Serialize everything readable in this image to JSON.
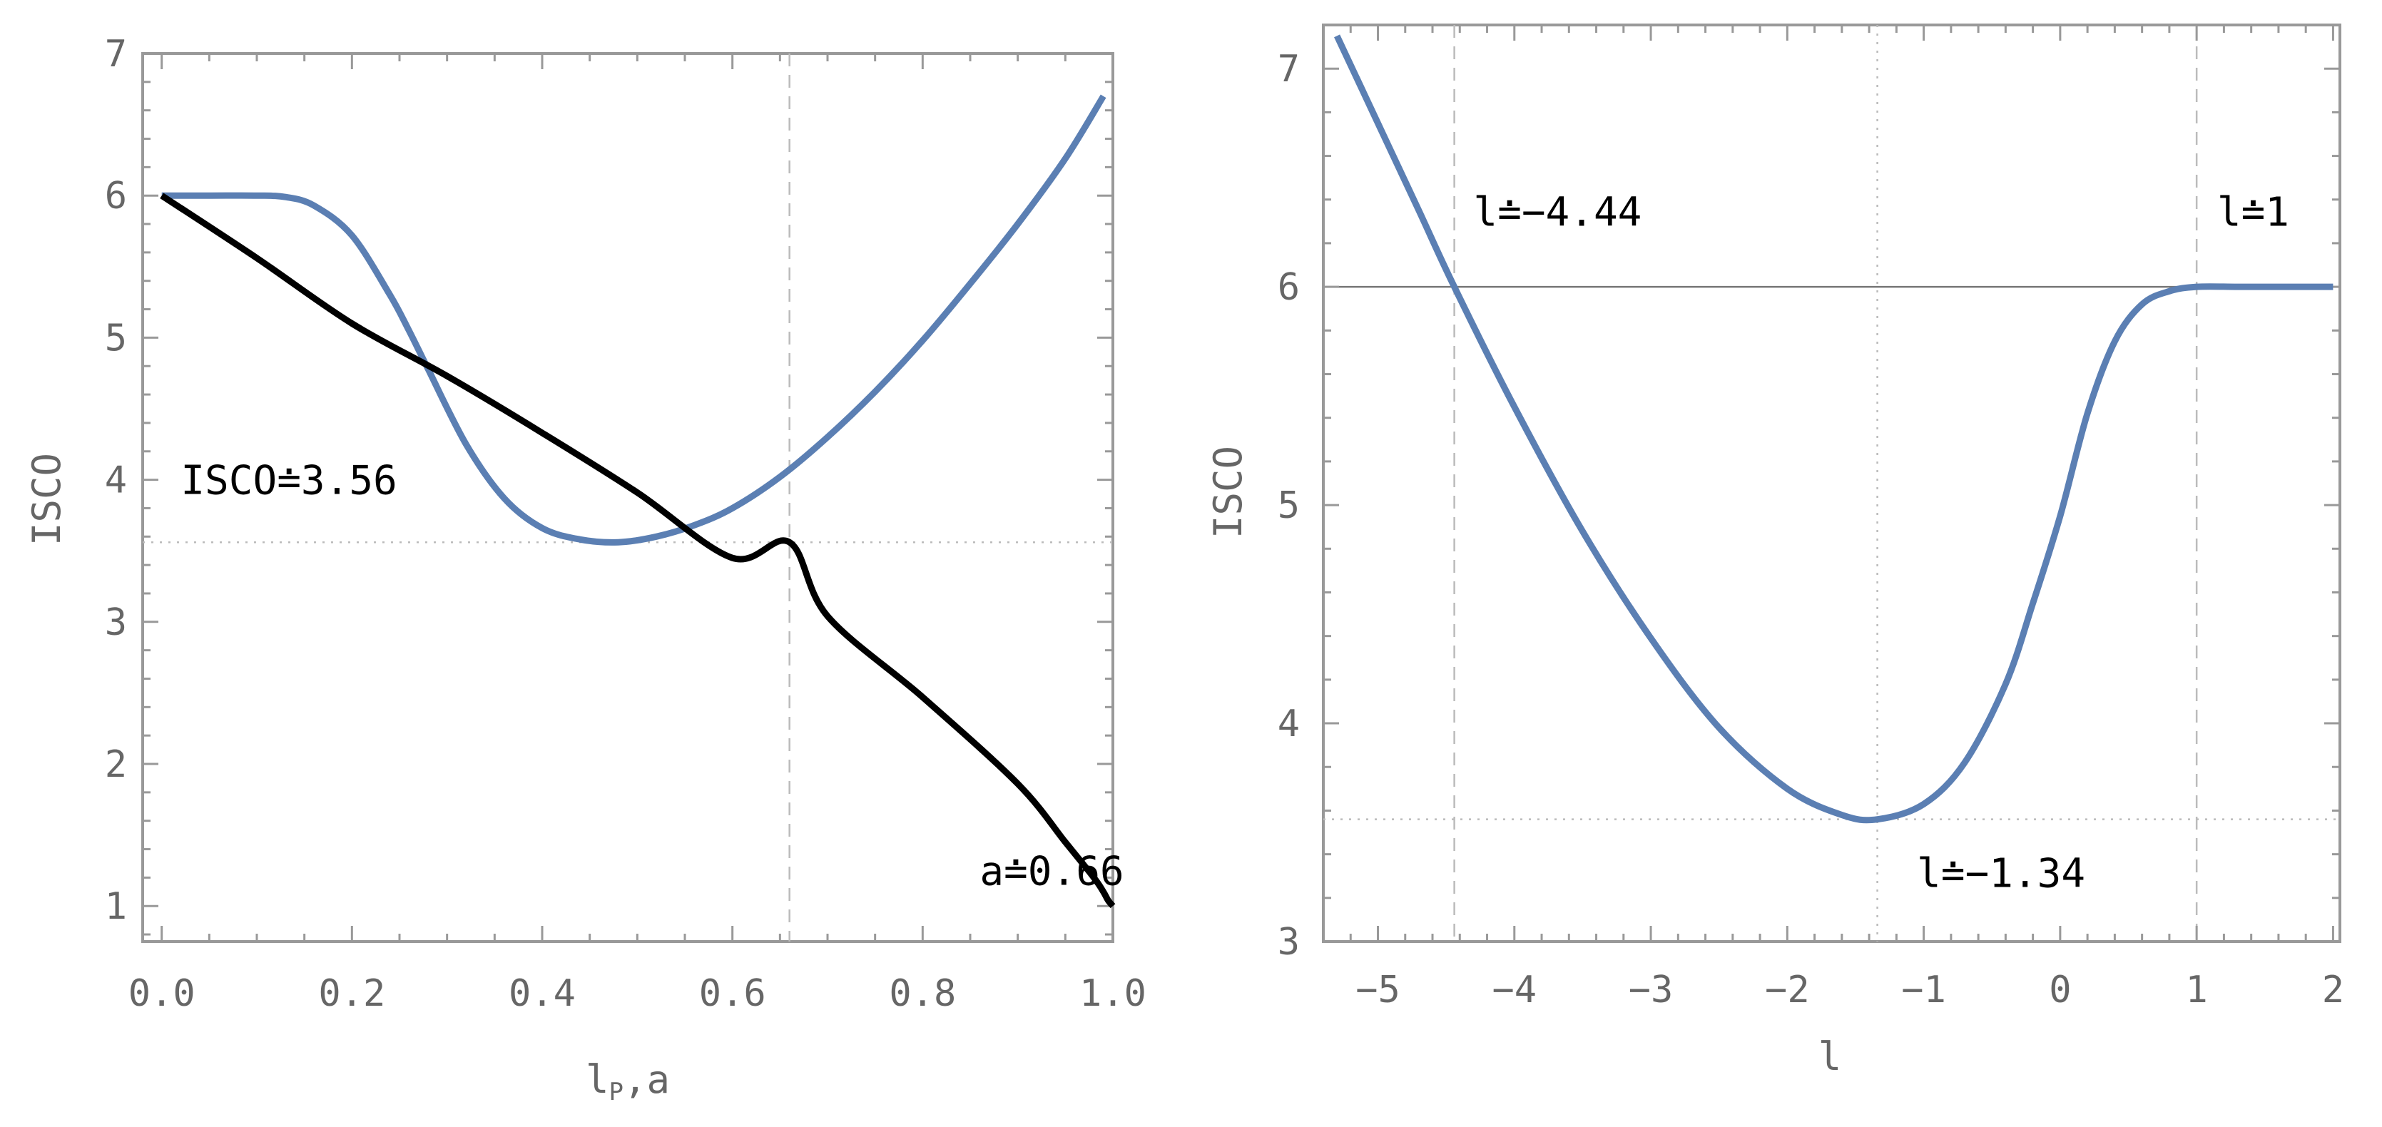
{
  "chart_data": [
    {
      "type": "line",
      "xlabel": "l",
      "xlabel_sub": "P",
      "xlabel_tail": ",a",
      "ylabel": "ISCO",
      "xlim": [
        -0.02,
        1.0
      ],
      "ylim": [
        0.75,
        7.0
      ],
      "xticks": [
        0.0,
        0.2,
        0.4,
        0.6,
        0.8,
        1.0
      ],
      "xtick_labels": [
        "0.0",
        "0.2",
        "0.4",
        "0.6",
        "0.8",
        "1.0"
      ],
      "yticks": [
        1,
        2,
        3,
        4,
        5,
        6,
        7
      ],
      "ytick_labels": [
        "1",
        "2",
        "3",
        "4",
        "5",
        "6",
        "7"
      ],
      "grid": false,
      "series": [
        {
          "color": "#5b7fb3",
          "x": [
            0.0,
            0.05,
            0.1,
            0.13,
            0.16,
            0.2,
            0.24,
            0.26,
            0.28,
            0.32,
            0.36,
            0.4,
            0.44,
            0.48,
            0.52,
            0.56,
            0.6,
            0.65,
            0.7,
            0.75,
            0.8,
            0.85,
            0.9,
            0.95,
            0.99
          ],
          "y": [
            6.0,
            6.0,
            6.0,
            5.99,
            5.93,
            5.72,
            5.3,
            5.05,
            4.78,
            4.25,
            3.87,
            3.66,
            3.58,
            3.56,
            3.6,
            3.68,
            3.8,
            4.02,
            4.3,
            4.62,
            4.98,
            5.38,
            5.8,
            6.26,
            6.7
          ]
        },
        {
          "color": "#000000",
          "x": [
            0.0,
            0.1,
            0.2,
            0.3,
            0.4,
            0.5,
            0.6,
            0.66,
            0.7,
            0.8,
            0.9,
            0.95,
            0.98,
            0.99,
            0.995,
            1.0
          ],
          "y": [
            6.0,
            5.56,
            5.1,
            4.73,
            4.33,
            3.91,
            3.45,
            3.56,
            3.04,
            2.47,
            1.86,
            1.45,
            1.2,
            1.1,
            1.04,
            1.0
          ]
        }
      ],
      "reference_lines": [
        {
          "orientation": "vertical",
          "value": 0.66,
          "style": "dashed"
        },
        {
          "orientation": "horizontal",
          "value": 3.56,
          "style": "dotted"
        }
      ],
      "annotations": [
        {
          "text": "ISCO≐3.56",
          "x": 0.02,
          "y": 3.9
        },
        {
          "text": "a≐0.66",
          "x": 0.86,
          "y": 1.15
        }
      ]
    },
    {
      "type": "line",
      "xlabel": "l",
      "ylabel": "ISCO",
      "xlim": [
        -5.4,
        2.05
      ],
      "ylim": [
        3.0,
        7.2
      ],
      "xticks": [
        -5,
        -4,
        -3,
        -2,
        -1,
        0,
        1,
        2
      ],
      "xtick_labels": [
        "−5",
        "−4",
        "−3",
        "−2",
        "−1",
        "0",
        "1",
        "2"
      ],
      "yticks": [
        3,
        4,
        5,
        6,
        7
      ],
      "ytick_labels": [
        "3",
        "4",
        "5",
        "6",
        "7"
      ],
      "grid": false,
      "series": [
        {
          "color": "#5b7fb3",
          "x": [
            -5.3,
            -5.0,
            -4.7,
            -4.44,
            -4.0,
            -3.5,
            -3.0,
            -2.5,
            -2.0,
            -1.6,
            -1.34,
            -1.0,
            -0.7,
            -0.4,
            -0.2,
            0.0,
            0.2,
            0.4,
            0.6,
            0.8,
            1.0,
            1.3,
            1.6,
            2.0
          ],
          "y": [
            7.15,
            6.75,
            6.35,
            6.0,
            5.45,
            4.88,
            4.39,
            3.98,
            3.7,
            3.58,
            3.56,
            3.63,
            3.82,
            4.18,
            4.55,
            4.95,
            5.42,
            5.75,
            5.92,
            5.98,
            6.0,
            6.0,
            6.0,
            6.0
          ]
        }
      ],
      "reference_lines": [
        {
          "orientation": "horizontal",
          "value": 6.0,
          "style": "solid"
        },
        {
          "orientation": "horizontal",
          "value": 3.56,
          "style": "dotted"
        },
        {
          "orientation": "vertical",
          "value": -4.44,
          "style": "dashed"
        },
        {
          "orientation": "vertical",
          "value": -1.34,
          "style": "dotted"
        },
        {
          "orientation": "vertical",
          "value": 1.0,
          "style": "dashed"
        }
      ],
      "annotations": [
        {
          "text": "l≐−4.44",
          "x": -4.3,
          "y": 6.28
        },
        {
          "text": "l≐1",
          "x": 1.15,
          "y": 6.28
        },
        {
          "text": "l≐−1.34",
          "x": -1.05,
          "y": 3.25
        }
      ]
    }
  ]
}
